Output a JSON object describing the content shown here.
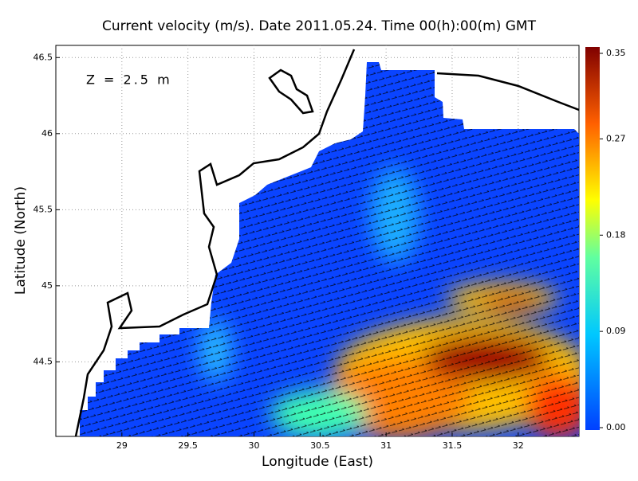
{
  "chart_data": {
    "type": "map",
    "title": "Current velocity (m/s). Date 2011.05.24. Time 00(h):00(m) GMT",
    "annotation": "Z = 2.5 m",
    "xlabel": "Longitude (East)",
    "ylabel": "Latitude (North)",
    "xlim": [
      28.5,
      32.46
    ],
    "ylim": [
      44.01,
      46.58
    ],
    "xticks": [
      29,
      29.5,
      30,
      30.5,
      31,
      31.5,
      32
    ],
    "yticks": [
      44.5,
      45,
      45.5,
      46,
      46.5
    ],
    "grid": true,
    "clim": [
      0,
      0.35
    ],
    "cticks": [
      {
        "value": 0,
        "label": "0.00"
      },
      0.09,
      0.18,
      0.27,
      0.35
    ]
  }
}
